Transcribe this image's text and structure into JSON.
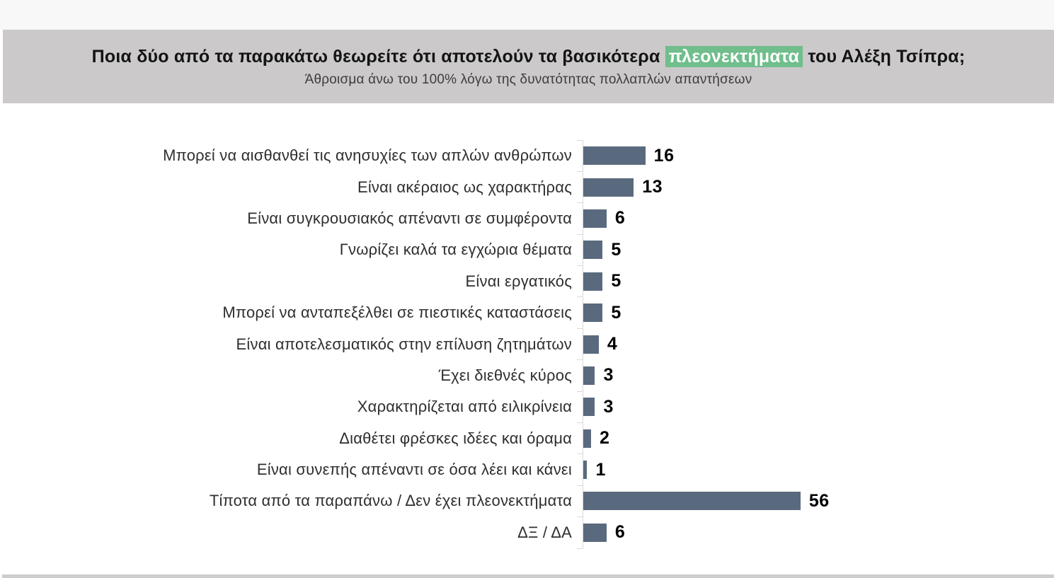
{
  "header": {
    "title_prefix": "Ποια δύο από τα παρακάτω θεωρείτε ότι αποτελούν τα βασικότερα ",
    "title_highlight": "πλεονεκτήματα",
    "title_suffix": " του Αλέξη Τσίπρα;",
    "subtitle": "Άθροισμα άνω του 100% λόγω της δυνατότητας πολλαπλών απαντήσεων",
    "band_color": "#cbc9c9",
    "highlight_color": "#6fbe8c"
  },
  "chart_data": {
    "type": "bar",
    "orientation": "horizontal",
    "categories": [
      "Μπορεί να αισθανθεί τις ανησυχίες των απλών ανθρώπων",
      "Είναι ακέραιος ως χαρακτήρας",
      "Είναι συγκρουσιακός απέναντι σε συμφέροντα",
      "Γνωρίζει καλά τα εγχώρια θέματα",
      "Είναι εργατικός",
      "Μπορεί να ανταπεξέλθει σε πιεστικές καταστάσεις",
      "Είναι αποτελεσματικός στην επίλυση ζητημάτων",
      "Έχει διεθνές κύρος",
      "Χαρακτηρίζεται από ειλικρίνεια",
      "Διαθέτει φρέσκες ιδέες και όραμα",
      "Είναι συνεπής απέναντι σε όσα λέει και κάνει",
      "Τίποτα από τα παραπάνω / Δεν έχει πλεονεκτήματα",
      "ΔΞ / ΔΑ"
    ],
    "values": [
      16,
      13,
      6,
      5,
      5,
      5,
      4,
      3,
      3,
      2,
      1,
      56,
      6
    ],
    "value_labels_shown": true,
    "bar_color": "#5a6a7e",
    "axis_color": "#d9d9d9",
    "xlim": [
      0,
      60
    ],
    "grid": false,
    "legend": false
  }
}
